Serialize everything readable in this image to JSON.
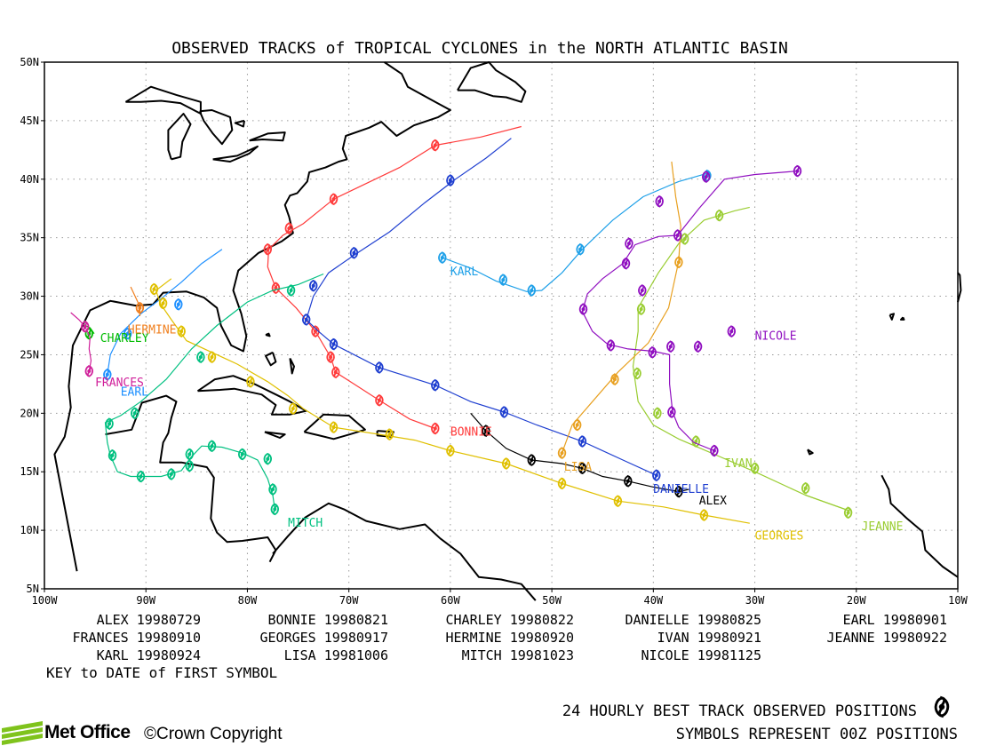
{
  "title": "OBSERVED TRACKS of TROPICAL CYCLONES in the NORTH ATLANTIC BASIN",
  "axes": {
    "lat_labels": [
      "5N",
      "10N",
      "15N",
      "20N",
      "25N",
      "30N",
      "35N",
      "40N",
      "45N",
      "50N"
    ],
    "lon_labels": [
      "100W",
      "90W",
      "80W",
      "70W",
      "60W",
      "50W",
      "40W",
      "30W",
      "20W",
      "10W"
    ],
    "lat_range": [
      5,
      50
    ],
    "lon_range": [
      -100,
      -10
    ],
    "gridlines": true
  },
  "colors": {
    "frame": "#000000",
    "coast": "#000000",
    "grid": "#9a9a9a"
  },
  "storms": [
    {
      "name": "ALEX",
      "date": "19980729",
      "color": "#000000",
      "points": [
        [
          -58,
          20
        ],
        [
          -56.5,
          18.5
        ],
        [
          -54.5,
          17
        ],
        [
          -52,
          16
        ],
        [
          -49,
          15.7
        ],
        [
          -47,
          15.3
        ],
        [
          -45,
          14.6
        ],
        [
          -42.5,
          14.2
        ],
        [
          -40,
          13.7
        ],
        [
          -37.5,
          13.3
        ],
        [
          -36.5,
          13.5
        ]
      ],
      "symbols": [
        [
          -56.5,
          18.5
        ],
        [
          -52,
          16
        ],
        [
          -47,
          15.3
        ],
        [
          -42.5,
          14.2
        ],
        [
          -37.5,
          13.3
        ]
      ],
      "label": {
        "lon": -35.5,
        "lat": 12.2
      }
    },
    {
      "name": "BONNIE",
      "date": "19980821",
      "color": "#ff3b3b",
      "points": [
        [
          -61.5,
          18.7
        ],
        [
          -64,
          19.5
        ],
        [
          -67,
          21.1
        ],
        [
          -69.5,
          22.5
        ],
        [
          -71.3,
          23.5
        ],
        [
          -71.8,
          24.8
        ],
        [
          -73.3,
          27
        ],
        [
          -75.2,
          29
        ],
        [
          -77.2,
          30.7
        ],
        [
          -78,
          32.5
        ],
        [
          -77.9,
          34
        ],
        [
          -76.5,
          35.2
        ],
        [
          -74.5,
          36.2
        ],
        [
          -71.5,
          38.3
        ],
        [
          -65,
          41
        ],
        [
          -61.5,
          42.9
        ],
        [
          -57,
          43.6
        ],
        [
          -53,
          44.5
        ]
      ],
      "symbols": [
        [
          -61.5,
          18.7
        ],
        [
          -67,
          21.1
        ],
        [
          -71.3,
          23.5
        ],
        [
          -71.8,
          24.8
        ],
        [
          -73.3,
          27
        ],
        [
          -77.2,
          30.7
        ],
        [
          -78,
          34
        ],
        [
          -75.9,
          35.8
        ],
        [
          -71.5,
          38.3
        ],
        [
          -61.5,
          42.9
        ]
      ],
      "label": {
        "lon": -60,
        "lat": 18.1
      }
    },
    {
      "name": "CHARLEY",
      "date": "19980822",
      "color": "#00bb00",
      "points": [
        [
          -95.1,
          26.8
        ],
        [
          -95.5,
          27.3
        ],
        [
          -96.2,
          27.6
        ]
      ],
      "symbols": [
        [
          -95.6,
          26.8
        ]
      ],
      "label": {
        "lon": -94.5,
        "lat": 26.1
      }
    },
    {
      "name": "DANIELLE",
      "date": "19980825",
      "color": "#1f3fd0",
      "points": [
        [
          -39.7,
          14.7
        ],
        [
          -43,
          16
        ],
        [
          -47,
          17.6
        ],
        [
          -51.5,
          19
        ],
        [
          -54.7,
          20.1
        ],
        [
          -58,
          21
        ],
        [
          -61.5,
          22.4
        ],
        [
          -67,
          23.9
        ],
        [
          -71.5,
          25.9
        ],
        [
          -73,
          27
        ],
        [
          -74.2,
          28
        ],
        [
          -73.5,
          30
        ],
        [
          -72,
          32
        ],
        [
          -69.5,
          33.5
        ],
        [
          -66,
          35.5
        ],
        [
          -62.5,
          38
        ],
        [
          -59.5,
          40
        ],
        [
          -56.5,
          41.8
        ],
        [
          -54,
          43.5
        ]
      ],
      "symbols": [
        [
          -39.7,
          14.7
        ],
        [
          -47,
          17.6
        ],
        [
          -54.7,
          20.1
        ],
        [
          -61.5,
          22.4
        ],
        [
          -67,
          23.9
        ],
        [
          -71.5,
          25.9
        ],
        [
          -74.2,
          28
        ],
        [
          -73.5,
          30.9
        ],
        [
          -69.5,
          33.7
        ],
        [
          -60,
          39.9
        ]
      ],
      "label": {
        "lon": -40,
        "lat": 13.2
      }
    },
    {
      "name": "EARL",
      "date": "19980901",
      "color": "#1e90ff",
      "points": [
        [
          -93.8,
          23.3
        ],
        [
          -93.5,
          25
        ],
        [
          -92.5,
          26.8
        ],
        [
          -90.5,
          28.5
        ],
        [
          -88.5,
          29.8
        ],
        [
          -86.5,
          31.2
        ],
        [
          -84.5,
          32.8
        ],
        [
          -82.5,
          34
        ]
      ],
      "symbols": [
        [
          -93.8,
          23.3
        ],
        [
          -91.8,
          26.8
        ],
        [
          -86.8,
          29.3
        ]
      ],
      "label": {
        "lon": -92.5,
        "lat": 21.5
      }
    },
    {
      "name": "FRANCES",
      "date": "19980910",
      "color": "#d0209a",
      "points": [
        [
          -95.6,
          23.6
        ],
        [
          -95.4,
          24.5
        ],
        [
          -95.6,
          25.5
        ],
        [
          -95.5,
          26.5
        ],
        [
          -96,
          27.4
        ],
        [
          -96.6,
          28
        ],
        [
          -97.4,
          28.6
        ]
      ],
      "symbols": [
        [
          -95.6,
          23.6
        ],
        [
          -96,
          27.4
        ]
      ],
      "label": {
        "lon": -95,
        "lat": 22.3
      }
    },
    {
      "name": "GEORGES",
      "date": "19980917",
      "color": "#e0c000",
      "points": [
        [
          -30.5,
          10.6
        ],
        [
          -35,
          11.3
        ],
        [
          -39,
          12
        ],
        [
          -43.5,
          12.5
        ],
        [
          -49,
          14
        ],
        [
          -54.5,
          15.7
        ],
        [
          -60,
          16.8
        ],
        [
          -63.5,
          17.7
        ],
        [
          -67,
          18.2
        ],
        [
          -71.5,
          18.8
        ],
        [
          -74.5,
          20.4
        ],
        [
          -76,
          21.5
        ],
        [
          -78,
          22.7
        ],
        [
          -81,
          24.2
        ],
        [
          -83,
          25
        ],
        [
          -86,
          26.2
        ],
        [
          -87.5,
          28
        ],
        [
          -88.6,
          29.4
        ],
        [
          -89,
          30.5
        ],
        [
          -87.5,
          31.5
        ]
      ],
      "symbols": [
        [
          -35,
          11.3
        ],
        [
          -43.5,
          12.5
        ],
        [
          -49,
          14
        ],
        [
          -54.5,
          15.7
        ],
        [
          -60,
          16.8
        ],
        [
          -66,
          18.2
        ],
        [
          -71.5,
          18.8
        ],
        [
          -75.5,
          20.4
        ],
        [
          -79.7,
          22.7
        ],
        [
          -83.5,
          24.8
        ],
        [
          -86.5,
          27
        ],
        [
          -88.3,
          29.4
        ],
        [
          -89.2,
          30.6
        ]
      ],
      "label": {
        "lon": -30,
        "lat": 9.2
      }
    },
    {
      "name": "HERMINE",
      "date": "19980920",
      "color": "#f08020",
      "points": [
        [
          -90.6,
          28.3
        ],
        [
          -90.6,
          29
        ],
        [
          -90.8,
          29.5
        ],
        [
          -91.5,
          30.8
        ]
      ],
      "symbols": [
        [
          -90.6,
          29
        ]
      ],
      "label": {
        "lon": -91.8,
        "lat": 26.8
      }
    },
    {
      "name": "IVAN",
      "date": "19980921",
      "color": "#9acd32",
      "points": [
        [
          -20.8,
          11.7
        ],
        [
          -25,
          13
        ],
        [
          -30,
          15
        ],
        [
          -34,
          16.5
        ],
        [
          -37.5,
          17.8
        ],
        [
          -40,
          19
        ],
        [
          -41.5,
          21
        ],
        [
          -42,
          24
        ],
        [
          -41.5,
          27
        ],
        [
          -41.5,
          29
        ],
        [
          -39.5,
          32
        ],
        [
          -37.5,
          34.5
        ],
        [
          -35,
          36.5
        ],
        [
          -32,
          37.3
        ],
        [
          -30.5,
          37.6
        ]
      ],
      "symbols": [
        [
          -25,
          13.6
        ],
        [
          -30,
          15.3
        ],
        [
          -35.8,
          17.6
        ],
        [
          -39.6,
          20
        ],
        [
          -41.6,
          23.4
        ],
        [
          -41.2,
          28.9
        ],
        [
          -36.9,
          34.9
        ],
        [
          -33.5,
          36.9
        ]
      ],
      "label": {
        "lon": -33,
        "lat": 15.4
      }
    },
    {
      "name": "JEANNE",
      "date": "19980922",
      "color": "#9acd32",
      "points": [
        [
          -20.8,
          11.7
        ],
        [
          -25,
          13
        ]
      ],
      "symbols": [
        [
          -20.8,
          11.5
        ]
      ],
      "label": {
        "lon": -19.5,
        "lat": 10
      }
    },
    {
      "name": "KARL",
      "date": "19980924",
      "color": "#1ea0e8",
      "points": [
        [
          -60.8,
          33.3
        ],
        [
          -58,
          32.4
        ],
        [
          -55.5,
          31.3
        ],
        [
          -52.5,
          30.4
        ],
        [
          -51,
          30.5
        ],
        [
          -49,
          32
        ],
        [
          -47,
          34
        ],
        [
          -44,
          36.5
        ],
        [
          -41,
          38.5
        ],
        [
          -37.5,
          39.8
        ],
        [
          -34.7,
          40.5
        ]
      ],
      "symbols": [
        [
          -60.8,
          33.3
        ],
        [
          -54.8,
          31.4
        ],
        [
          -52,
          30.5
        ],
        [
          -47.2,
          34
        ],
        [
          -34.7,
          40.3
        ]
      ],
      "label": {
        "lon": -60,
        "lat": 31.8
      }
    },
    {
      "name": "LISA",
      "date": "19981006",
      "color": "#e8a020",
      "points": [
        [
          -49,
          16.6
        ],
        [
          -48,
          19
        ],
        [
          -46,
          21
        ],
        [
          -43.5,
          23.5
        ],
        [
          -40.5,
          26
        ],
        [
          -38.5,
          29
        ],
        [
          -37.5,
          33
        ],
        [
          -37.3,
          36
        ],
        [
          -37.8,
          38.5
        ],
        [
          -38.2,
          41.5
        ]
      ],
      "symbols": [
        [
          -49,
          16.6
        ],
        [
          -47.5,
          19
        ],
        [
          -43.8,
          22.9
        ],
        [
          -37.5,
          32.9
        ]
      ],
      "label": {
        "lon": -48.8,
        "lat": 15.1
      }
    },
    {
      "name": "MITCH",
      "date": "19981023",
      "color": "#00c080",
      "points": [
        [
          -77.3,
          11.8
        ],
        [
          -77.5,
          13
        ],
        [
          -78,
          14.4
        ],
        [
          -79,
          16
        ],
        [
          -80.5,
          16.6
        ],
        [
          -82.5,
          17.1
        ],
        [
          -84.5,
          17.2
        ],
        [
          -85.6,
          16.2
        ],
        [
          -86.5,
          15.1
        ],
        [
          -88.5,
          14.6
        ],
        [
          -91.5,
          14.6
        ],
        [
          -92.8,
          15
        ],
        [
          -93.5,
          16.4
        ],
        [
          -93.8,
          17.5
        ],
        [
          -94,
          19.2
        ],
        [
          -92.5,
          19.8
        ],
        [
          -90.5,
          21
        ],
        [
          -88,
          22.9
        ],
        [
          -85.5,
          25.5
        ],
        [
          -83,
          27.5
        ],
        [
          -80,
          29.5
        ],
        [
          -77.5,
          30.5
        ],
        [
          -75,
          31
        ],
        [
          -72.5,
          31.9
        ]
      ],
      "symbols": [
        [
          -77.3,
          11.8
        ],
        [
          -77.5,
          13.5
        ],
        [
          -78,
          16.1
        ],
        [
          -80.5,
          16.5
        ],
        [
          -83.5,
          17.2
        ],
        [
          -85.7,
          16.5
        ],
        [
          -85.7,
          15.5
        ],
        [
          -87.5,
          14.8
        ],
        [
          -90.5,
          14.6
        ],
        [
          -93.3,
          16.4
        ],
        [
          -93.6,
          19.1
        ],
        [
          -91.1,
          20
        ],
        [
          -84.6,
          24.8
        ],
        [
          -75.7,
          30.5
        ]
      ],
      "label": {
        "lon": -76,
        "lat": 10.3
      }
    },
    {
      "name": "NICOLE",
      "date": "19981125",
      "color": "#9010c0",
      "points": [
        [
          -34,
          16.8
        ],
        [
          -36,
          17.5
        ],
        [
          -37.5,
          18.8
        ],
        [
          -38.1,
          20.1
        ],
        [
          -38.4,
          22.5
        ],
        [
          -38.4,
          25
        ],
        [
          -40,
          25.3
        ],
        [
          -42.5,
          25.5
        ],
        [
          -44.5,
          25.9
        ],
        [
          -46,
          27
        ],
        [
          -47,
          28.7
        ],
        [
          -46.5,
          30.2
        ],
        [
          -45,
          31.5
        ],
        [
          -43,
          32.8
        ],
        [
          -41.8,
          34.4
        ],
        [
          -39.5,
          35.1
        ],
        [
          -37.6,
          35.2
        ],
        [
          -35.5,
          37.5
        ],
        [
          -33,
          40
        ],
        [
          -30,
          40.4
        ],
        [
          -25.8,
          40.7
        ]
      ],
      "symbols": [
        [
          -34,
          16.8
        ],
        [
          -38.2,
          20.1
        ],
        [
          -38.3,
          25.7
        ],
        [
          -35.6,
          25.7
        ],
        [
          -32.3,
          27
        ],
        [
          -40.1,
          25.2
        ],
        [
          -44.2,
          25.8
        ],
        [
          -46.9,
          28.9
        ],
        [
          -42.7,
          32.8
        ],
        [
          -42.4,
          34.5
        ],
        [
          -37.6,
          35.2
        ],
        [
          -39.4,
          38.1
        ],
        [
          -34.8,
          40.2
        ],
        [
          -25.8,
          40.7
        ],
        [
          -41.1,
          30.5
        ]
      ],
      "label": {
        "lon": -30,
        "lat": 26.3
      }
    }
  ],
  "legend": {
    "rows": [
      [
        "ALEX 19980729",
        "BONNIE 19980821",
        "CHARLEY 19980822",
        "DANIELLE 19980825",
        "EARL 19980901"
      ],
      [
        "FRANCES 19980910",
        "GEORGES 19980917",
        "HERMINE 19980920",
        "IVAN 19980921",
        "JEANNE 19980922"
      ],
      [
        "KARL 19980924",
        "LISA 19981006",
        "MITCH 19981023",
        "NICOLE 19981125"
      ]
    ],
    "key_note": "KEY to DATE of FIRST SYMBOL"
  },
  "footer": {
    "line1": "24 HOURLY BEST TRACK OBSERVED POSITIONS",
    "line2": "SYMBOLS REPRESENT 00Z POSITIONS",
    "logo_text": "Met Office",
    "copyright": "©Crown Copyright"
  }
}
